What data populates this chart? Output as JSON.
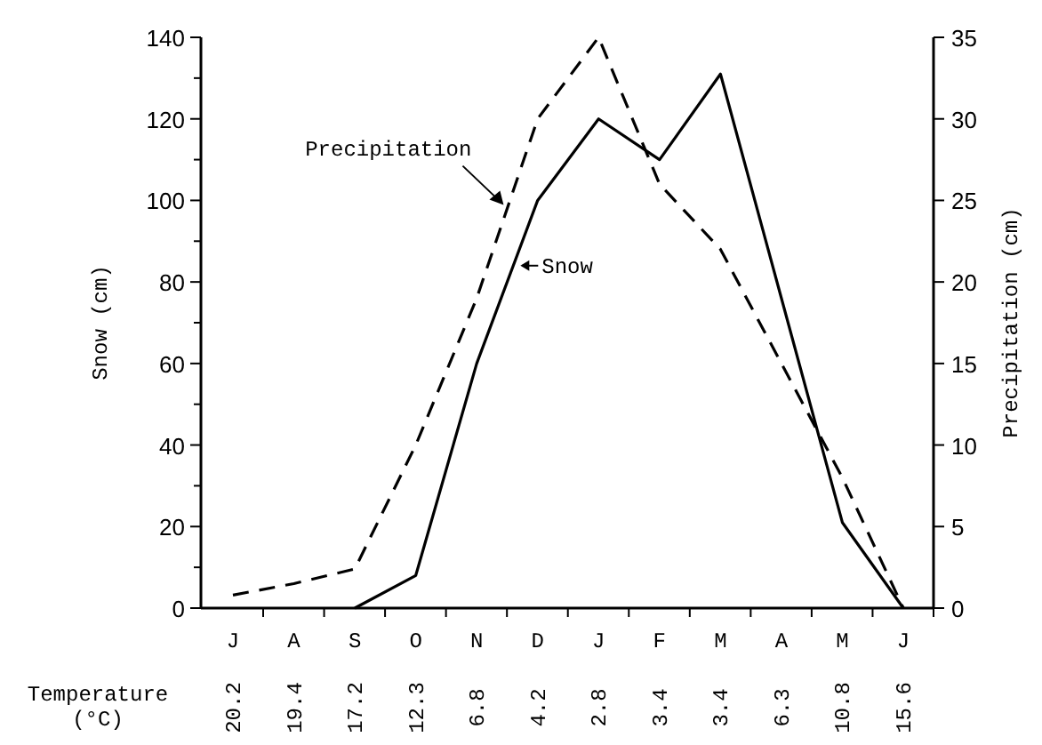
{
  "chart_data": {
    "type": "line",
    "categories": [
      "J\n20.2",
      "A\n19.4",
      "S\n17.2",
      "O\n12.3",
      "N\n6.8",
      "D\n4.2",
      "J\n2.8",
      "F\n3.4",
      "M\n3.4",
      "A\n6.3",
      "M\n10.8",
      "J\n15.6"
    ],
    "ylabel": "Snow (cm)",
    "y2label": "Precipitation (cm)",
    "ylim": [
      0,
      140
    ],
    "yticks": [
      0,
      {
        "value": 10,
        "label": null
      },
      20,
      {
        "value": 30,
        "label": null
      },
      40,
      {
        "value": 50,
        "label": null
      },
      60,
      {
        "value": 70,
        "label": null
      },
      80,
      {
        "value": 90,
        "label": null
      },
      100,
      {
        "value": 110,
        "label": null
      },
      120,
      {
        "value": 130,
        "label": null
      },
      140
    ],
    "y2lim": [
      0,
      35
    ],
    "y2ticks": [
      0,
      5,
      10,
      15,
      20,
      25,
      30,
      35
    ],
    "annotations": [
      "Temperature (°C)"
    ],
    "series": [
      {
        "name": "Snow",
        "color": "#000000",
        "line_style": "solid",
        "values": [
          null,
          null,
          0,
          8,
          60,
          100,
          120,
          110,
          131,
          76,
          21,
          0
        ]
      },
      {
        "name": "Precipitation",
        "color": "#000000",
        "line_style": "dashed",
        "axis": "y2",
        "values": [
          0.8,
          1.5,
          2.4,
          10,
          19,
          30,
          35,
          26,
          22,
          15,
          8,
          0
        ]
      }
    ],
    "grid": false,
    "marker": "none"
  }
}
